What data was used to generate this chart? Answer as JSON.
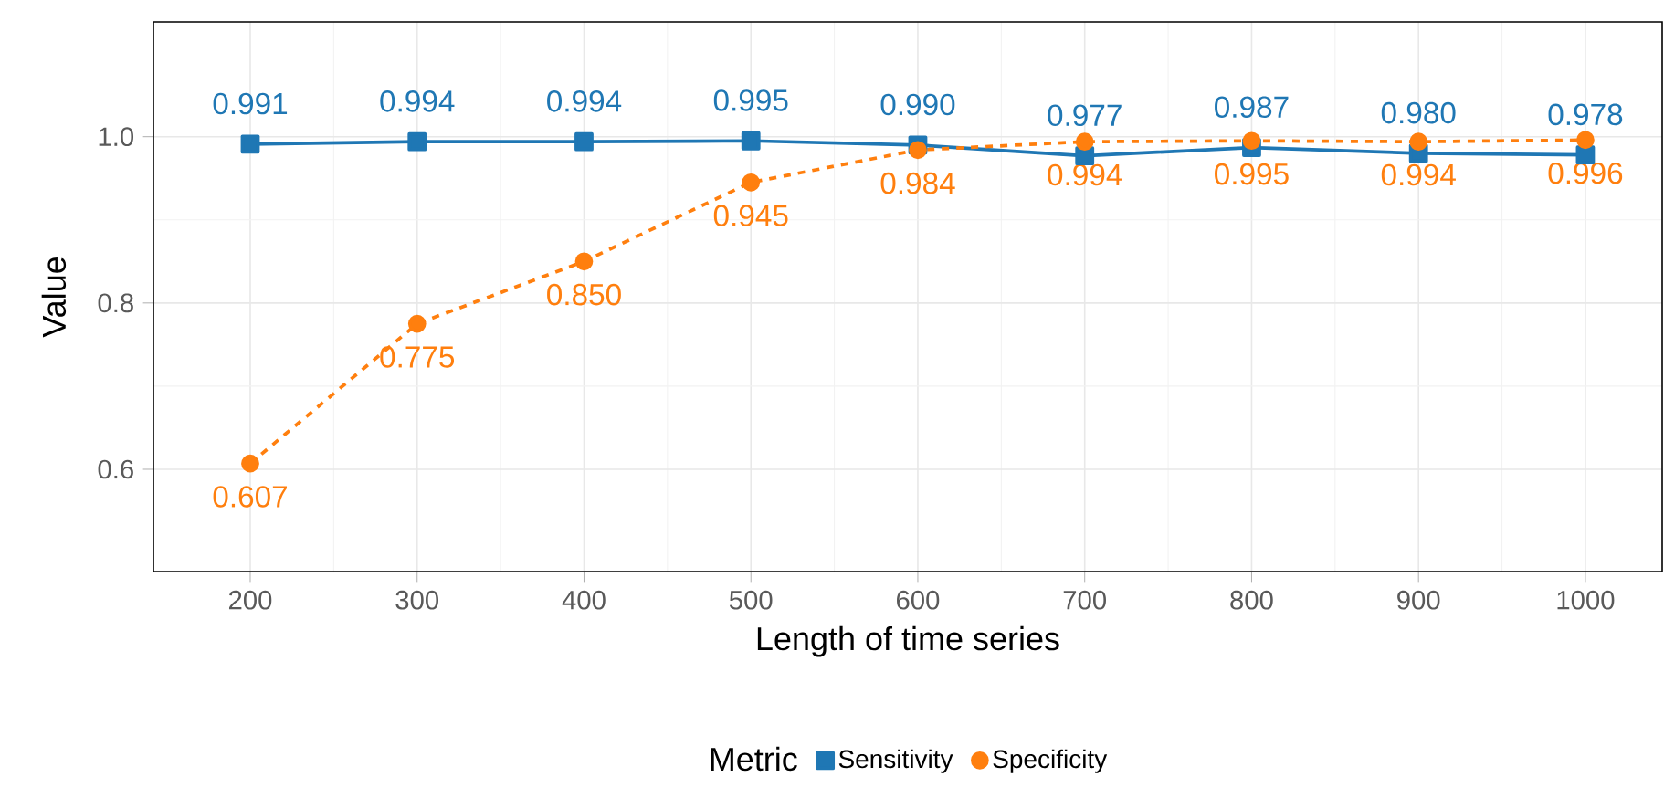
{
  "chart_data": {
    "type": "line",
    "xlabel": "Length of time series",
    "ylabel": "Value",
    "legend_title": "Metric",
    "x": [
      200,
      300,
      400,
      500,
      600,
      700,
      800,
      900,
      1000
    ],
    "series": [
      {
        "name": "Sensitivity",
        "color": "#1f77b4",
        "marker": "square",
        "line_style": "solid",
        "values": [
          0.991,
          0.994,
          0.994,
          0.995,
          0.99,
          0.977,
          0.987,
          0.98,
          0.978
        ],
        "value_labels": [
          "0.991",
          "0.994",
          "0.994",
          "0.995",
          "0.990",
          "0.977",
          "0.987",
          "0.980",
          "0.978"
        ]
      },
      {
        "name": "Specificity",
        "color": "#ff7f0e",
        "marker": "circle",
        "line_style": "dashed",
        "values": [
          0.607,
          0.775,
          0.85,
          0.945,
          0.984,
          0.994,
          0.995,
          0.994,
          0.996
        ],
        "value_labels": [
          "0.607",
          "0.775",
          "0.850",
          "0.945",
          "0.984",
          "0.994",
          "0.995",
          "0.994",
          "0.996"
        ]
      }
    ],
    "xlim": [
      142,
      1046
    ],
    "ylim": [
      0.477,
      1.138
    ],
    "xticks": [
      200,
      300,
      400,
      500,
      600,
      700,
      800,
      900,
      1000
    ],
    "yticks": [
      0.6,
      0.8,
      {
        "value": 1.0,
        "label": "1.0"
      }
    ],
    "grid": true,
    "legend": "bottom"
  }
}
